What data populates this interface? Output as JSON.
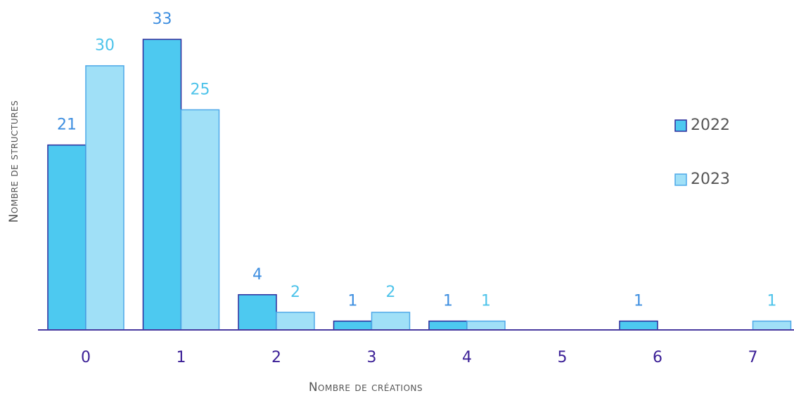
{
  "chart_data": {
    "type": "bar",
    "x_label": "Nombre de créations",
    "y_label": "Nombre de structures",
    "categories": [
      "0",
      "1",
      "2",
      "3",
      "4",
      "5",
      "6",
      "7"
    ],
    "series": [
      {
        "name": "2022",
        "color": "#4dc9f0",
        "stroke": "#2b2a9a",
        "label_color": "#3d8ee0",
        "values": [
          21,
          33,
          4,
          1,
          1,
          null,
          1,
          null
        ]
      },
      {
        "name": "2023",
        "color": "#a0e0f7",
        "stroke": "#4da8e8",
        "label_color": "#4dc3ea",
        "values": [
          30,
          25,
          2,
          2,
          1,
          null,
          null,
          1
        ]
      }
    ],
    "ylim": [
      0,
      35
    ],
    "legend": "right"
  }
}
